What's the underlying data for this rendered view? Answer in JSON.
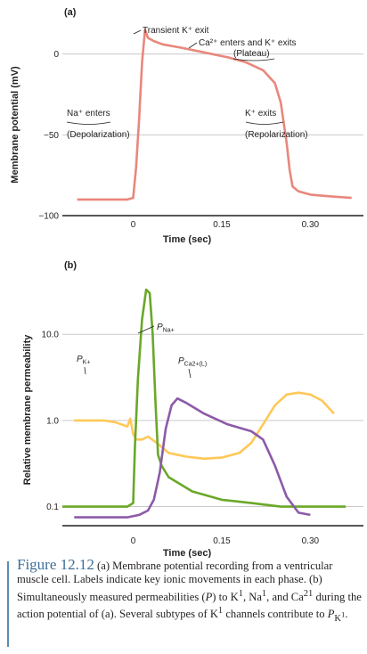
{
  "figure": {
    "label": "Figure 12.12",
    "caption_html": "(a) Membrane potential recording from a ventricular muscle cell. Labels indicate key ionic movements in each phase. (b) Simultaneously measured permeabilities (<i>P</i>) to K<sup>1</sup>, Na<sup>1</sup>, and Ca<sup>21</sup> during the action potential of (a). Several subtypes of K<sup>1</sup> channels contribute to <i>P</i><sub>K<sup>1</sup></sub>."
  },
  "colors": {
    "axis": "#231f20",
    "grid": "#c9c9c9",
    "voltage": "#e9877c",
    "pK": "#ffc857",
    "pNa": "#6aa829",
    "pCa": "#8c5aa8"
  },
  "chart_data": [
    {
      "type": "line",
      "panel_label": "(a)",
      "ylabel": "Membrane potential (mV)",
      "xlabel": "Time (sec)",
      "yticks": [
        "0",
        "−50",
        "−100"
      ],
      "xticks": [
        "0",
        "0.15",
        "0.30"
      ],
      "xlim": [
        -0.12,
        0.39
      ],
      "ylim": [
        -100,
        18
      ],
      "series": [
        {
          "x": [
            -0.095,
            -0.05,
            -0.01,
            0.0,
            0.005,
            0.01,
            0.015,
            0.02,
            0.025,
            0.035,
            0.05,
            0.08,
            0.12,
            0.16,
            0.19,
            0.22,
            0.24,
            0.25,
            0.26,
            0.265,
            0.27,
            0.28,
            0.3,
            0.33,
            0.37
          ],
          "y": [
            -90,
            -90,
            -90,
            -89,
            -70,
            -40,
            -5,
            15,
            10,
            8,
            6,
            4,
            1,
            -2,
            -5,
            -10,
            -18,
            -30,
            -55,
            -72,
            -82,
            -85,
            -87,
            -88,
            -89
          ]
        }
      ],
      "annotations": [
        {
          "text": "Transient K⁺ exit"
        },
        {
          "text": "Ca²⁺ enters and K⁺ exits"
        },
        {
          "text": "(Plateau)"
        },
        {
          "text": "Na⁺ enters"
        },
        {
          "text": "(Depolarization)"
        },
        {
          "text": "K⁺ exits"
        },
        {
          "text": "(Repolarization)"
        }
      ]
    },
    {
      "type": "line",
      "panel_label": "(b)",
      "ylabel": "Relative membrane permeability",
      "xlabel": "Time (sec)",
      "yscale": "log",
      "yticks": [
        "10.0",
        "1.0",
        "0.1"
      ],
      "xticks": [
        "0",
        "0.15",
        "0.30"
      ],
      "xlim": [
        -0.12,
        0.39
      ],
      "ylim": [
        0.06,
        60
      ],
      "series": [
        {
          "name": "P_K+",
          "label_main": "P",
          "label_sub": "K+",
          "x": [
            -0.1,
            -0.05,
            -0.03,
            -0.02,
            -0.01,
            -0.005,
            0.0,
            0.005,
            0.015,
            0.025,
            0.04,
            0.06,
            0.09,
            0.12,
            0.15,
            0.18,
            0.2,
            0.22,
            0.24,
            0.26,
            0.28,
            0.3,
            0.32,
            0.34
          ],
          "y": [
            1.0,
            1.0,
            0.95,
            0.9,
            0.85,
            1.05,
            0.7,
            0.6,
            0.6,
            0.65,
            0.55,
            0.42,
            0.38,
            0.36,
            0.37,
            0.42,
            0.55,
            0.9,
            1.5,
            2.0,
            2.1,
            2.0,
            1.7,
            1.2
          ]
        },
        {
          "name": "P_Na+",
          "label_main": "P",
          "label_sub": "Na+",
          "x": [
            -0.12,
            -0.05,
            -0.01,
            0.0,
            0.003,
            0.008,
            0.015,
            0.022,
            0.028,
            0.033,
            0.038,
            0.042,
            0.048,
            0.06,
            0.1,
            0.15,
            0.2,
            0.25,
            0.3,
            0.36
          ],
          "y": [
            0.1,
            0.1,
            0.1,
            0.11,
            0.5,
            3.0,
            15.0,
            33.0,
            30.0,
            10.0,
            1.5,
            0.4,
            0.3,
            0.22,
            0.15,
            0.12,
            0.11,
            0.1,
            0.1,
            0.1
          ]
        },
        {
          "name": "P_Ca2+(L)",
          "label_main": "P",
          "label_sub": "Ca2+(L)",
          "x": [
            -0.1,
            -0.05,
            -0.01,
            0.01,
            0.025,
            0.035,
            0.045,
            0.055,
            0.065,
            0.075,
            0.09,
            0.12,
            0.16,
            0.2,
            0.22,
            0.24,
            0.26,
            0.28,
            0.3
          ],
          "y": [
            0.075,
            0.075,
            0.075,
            0.08,
            0.09,
            0.12,
            0.25,
            0.8,
            1.5,
            1.8,
            1.6,
            1.2,
            0.9,
            0.75,
            0.6,
            0.3,
            0.13,
            0.085,
            0.08
          ]
        }
      ]
    }
  ]
}
